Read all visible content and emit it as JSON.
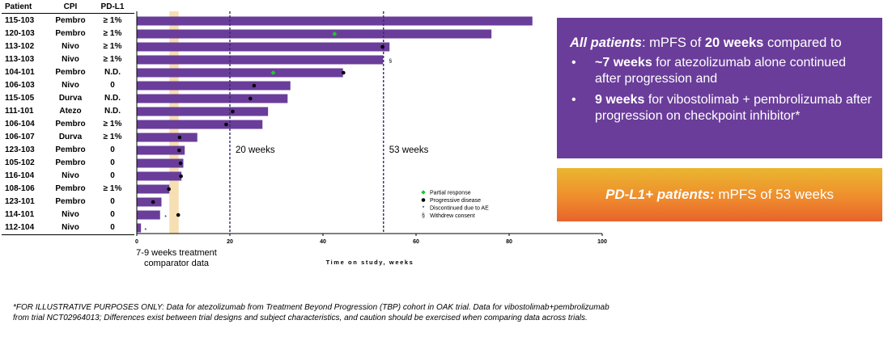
{
  "table": {
    "headers": {
      "patient": "Patient",
      "cpi": "CPI",
      "pdl1": "PD-L1"
    },
    "rows": [
      {
        "patient": "115-103",
        "cpi": "Pembro",
        "pdl1": "≥ 1%"
      },
      {
        "patient": "120-103",
        "cpi": "Pembro",
        "pdl1": "≥ 1%"
      },
      {
        "patient": "113-102",
        "cpi": "Nivo",
        "pdl1": "≥ 1%"
      },
      {
        "patient": "113-103",
        "cpi": "Nivo",
        "pdl1": "≥ 1%"
      },
      {
        "patient": "104-101",
        "cpi": "Pembro",
        "pdl1": "N.D."
      },
      {
        "patient": "106-103",
        "cpi": "Nivo",
        "pdl1": "0"
      },
      {
        "patient": "115-105",
        "cpi": "Durva",
        "pdl1": "N.D."
      },
      {
        "patient": "111-101",
        "cpi": "Atezo",
        "pdl1": "N.D."
      },
      {
        "patient": "106-104",
        "cpi": "Pembro",
        "pdl1": "≥ 1%"
      },
      {
        "patient": "106-107",
        "cpi": "Durva",
        "pdl1": "≥ 1%"
      },
      {
        "patient": "123-103",
        "cpi": "Pembro",
        "pdl1": "0"
      },
      {
        "patient": "105-102",
        "cpi": "Pembro",
        "pdl1": "0"
      },
      {
        "patient": "116-104",
        "cpi": "Nivo",
        "pdl1": "0"
      },
      {
        "patient": "108-106",
        "cpi": "Pembro",
        "pdl1": "≥ 1%"
      },
      {
        "patient": "123-101",
        "cpi": "Pembro",
        "pdl1": "0"
      },
      {
        "patient": "114-101",
        "cpi": "Nivo",
        "pdl1": "0"
      },
      {
        "patient": "112-104",
        "cpi": "Nivo",
        "pdl1": "0"
      }
    ]
  },
  "chart_data": {
    "type": "bar",
    "orientation": "horizontal",
    "categories": [
      "115-103",
      "120-103",
      "113-102",
      "113-103",
      "104-101",
      "106-103",
      "115-105",
      "111-101",
      "106-104",
      "106-107",
      "123-103",
      "105-102",
      "116-104",
      "108-106",
      "123-101",
      "114-101",
      "112-104"
    ],
    "values": [
      85.0,
      76.2,
      54.3,
      52.9,
      44.3,
      33.0,
      32.4,
      28.2,
      27.0,
      13.0,
      10.3,
      10.0,
      9.6,
      7.0,
      5.3,
      5.0,
      0.9
    ],
    "progressive_disease": [
      null,
      null,
      52.8,
      null,
      44.4,
      25.2,
      24.4,
      20.6,
      19.2,
      9.2,
      9.1,
      9.4,
      9.5,
      6.9,
      3.5,
      8.9,
      null
    ],
    "partial_response": [
      null,
      42.5,
      null,
      null,
      29.3,
      null,
      null,
      null,
      null,
      null,
      null,
      null,
      null,
      null,
      null,
      null,
      null
    ],
    "discontinued_ae": [
      null,
      null,
      null,
      null,
      null,
      null,
      null,
      null,
      null,
      null,
      null,
      null,
      null,
      null,
      null,
      6.3,
      2.0
    ],
    "withdrew_consent": [
      null,
      null,
      null,
      54.0,
      null,
      null,
      null,
      null,
      null,
      null,
      null,
      null,
      null,
      null,
      null,
      null,
      null
    ],
    "xlim": [
      0,
      100
    ],
    "xticks": [
      0,
      20,
      40,
      60,
      80,
      100
    ],
    "xlabel": "Time on study, weeks",
    "ylabel": "",
    "reference_lines": [
      {
        "x": 20,
        "label": "20 weeks"
      },
      {
        "x": 53,
        "label": "53 weeks"
      }
    ],
    "shaded_band": {
      "from": 7,
      "to": 9,
      "label": "7-9 weeks treatment comparator data"
    },
    "legend": {
      "placement": "bottom-right",
      "items": [
        {
          "symbol": "◆",
          "label": "Partial response"
        },
        {
          "symbol": "●",
          "label": "Progressive disease"
        },
        {
          "symbol": "*",
          "label": "Discontinued due to AE"
        },
        {
          "symbol": "§",
          "label": "Withdrew consent"
        }
      ]
    },
    "colors": {
      "bar": "#6a3d9a",
      "band": "#f4d9a6",
      "partial_response": "#21c531",
      "progressive_disease": "#000000"
    }
  },
  "callout_all": {
    "lead_bold_italic": "All patients",
    "lead_rest": ": mPFS of ",
    "lead_bold_value": "20 weeks",
    "lead_tail": " compared to",
    "bullets": [
      {
        "bold": "~7 weeks",
        "text": " for atezolizumab alone continued after progression and"
      },
      {
        "bold": "9 weeks",
        "text": " for vibostolimab + pembrolizumab after progression on checkpoint inhibitor*"
      }
    ],
    "bullet_symbol": "•",
    "color": "#6a3d9a"
  },
  "callout_pdl1": {
    "lead_bold_italic": "PD-L1+ patients:",
    "rest": " mPFS of 53 weeks"
  },
  "footnote": {
    "line1": "*FOR ILLUSTRATIVE PURPOSES ONLY: Data for atezolizumab from Treatment Beyond Progression (TBP) cohort in OAK trial. Data for vibostolimab+pembrolizumab",
    "line2": "from trial NCT02964013;  Differences exist between trial designs and subject characteristics, and caution should be exercised when comparing data across trials."
  }
}
